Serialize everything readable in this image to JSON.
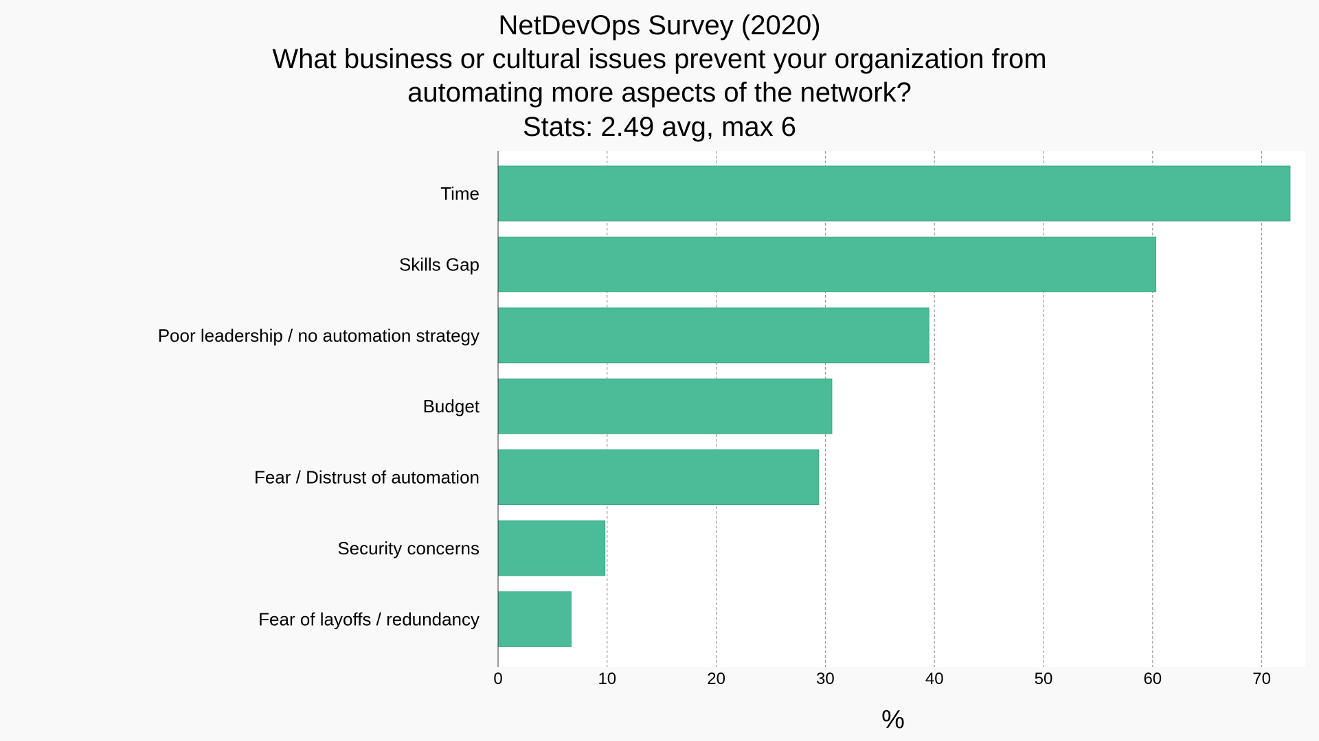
{
  "chart_data": {
    "type": "bar",
    "orientation": "horizontal",
    "title_lines": [
      "NetDevOps Survey (2020)",
      "What business or cultural issues prevent your organization from",
      "automating more aspects of the network?",
      "Stats: 2.49 avg, max 6"
    ],
    "categories": [
      "Time",
      "Skills Gap",
      "Poor leadership / no automation strategy",
      "Budget",
      "Fear / Distrust of automation",
      "Security concerns",
      "Fear of layoffs / redundancy"
    ],
    "values": [
      72.6,
      60.3,
      39.5,
      30.6,
      29.4,
      9.8,
      6.7
    ],
    "xlabel": "%",
    "ylabel": "",
    "xlim": [
      0,
      74
    ],
    "xticks": [
      0,
      10,
      20,
      30,
      40,
      50,
      60,
      70
    ],
    "grid": "vertical-dashed",
    "legend": "none",
    "colors": {
      "bar": "#4cbb98",
      "bar_edge": "#3aa882",
      "plot_background": "#ffffff",
      "page_background": "#f9f9f9",
      "grid": "#8a8a8a"
    }
  }
}
